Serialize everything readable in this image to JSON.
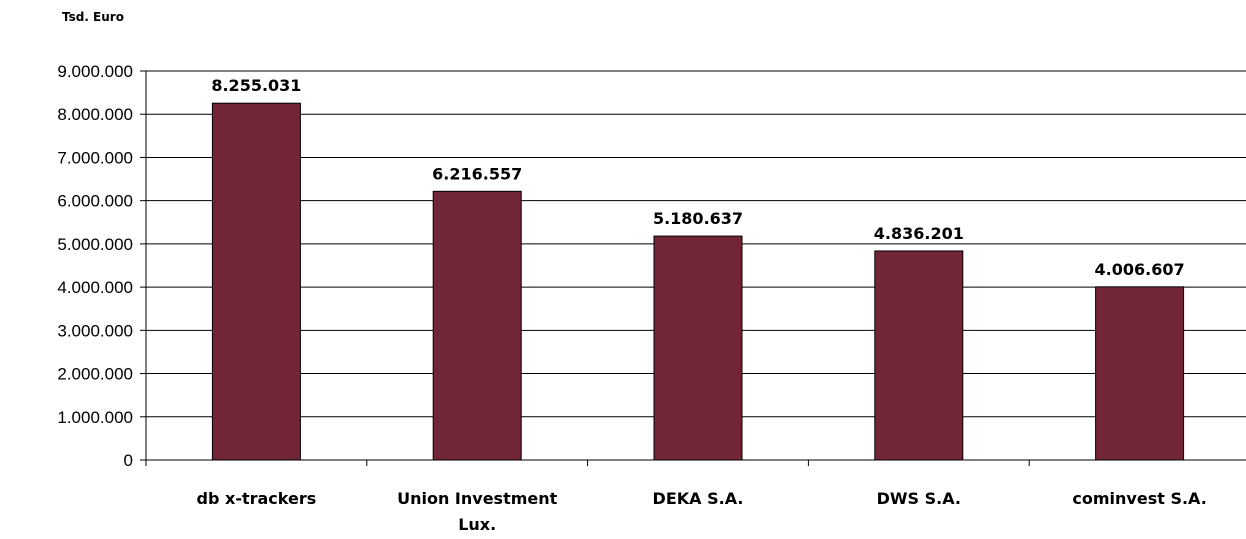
{
  "chart_data": {
    "type": "bar",
    "unit_label": "Tsd. Euro",
    "categories": [
      [
        "db x-trackers"
      ],
      [
        "Union Investment",
        "Lux."
      ],
      [
        "DEKA S.A."
      ],
      [
        "DWS S.A."
      ],
      [
        "cominvest S.A."
      ]
    ],
    "values": [
      8255031,
      6216557,
      5180637,
      4836201,
      4006607
    ],
    "data_labels": [
      "8.255.031",
      "6.216.557",
      "5.180.637",
      "4.836.201",
      "4.006.607"
    ],
    "yticks": [
      0,
      1000000,
      2000000,
      3000000,
      4000000,
      5000000,
      6000000,
      7000000,
      8000000,
      9000000
    ],
    "ytick_labels": [
      "0",
      "1.000.000",
      "2.000.000",
      "3.000.000",
      "4.000.000",
      "5.000.000",
      "6.000.000",
      "7.000.000",
      "8.000.000",
      "9.000.000"
    ],
    "ylim": [
      0,
      9000000
    ],
    "grid": true,
    "bar_color": "#722536",
    "bar_outline": "#000000"
  }
}
